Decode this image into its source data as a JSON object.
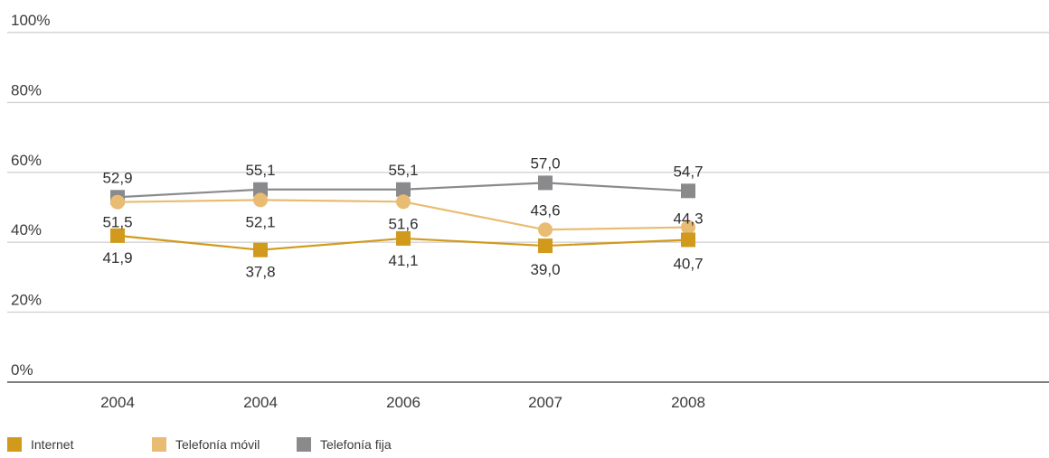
{
  "chart_data": {
    "type": "line",
    "categories": [
      "2004",
      "2004",
      "2006",
      "2007",
      "2008"
    ],
    "ylim": [
      0,
      100
    ],
    "yticks": [
      "0%",
      "20%",
      "40%",
      "60%",
      "80%",
      "100%"
    ],
    "ytick_values": [
      0,
      20,
      40,
      60,
      80,
      100
    ],
    "grid": true,
    "legend_position": "bottom-left",
    "series": [
      {
        "name": "Internet",
        "color": "#D29A1C",
        "marker": "square",
        "values": [
          41.9,
          37.8,
          41.1,
          39.0,
          40.7
        ],
        "labels": [
          "41,9",
          "37,8",
          "41,1",
          "39,0",
          "40,7"
        ]
      },
      {
        "name": "Telefonía móvil",
        "color": "#E8BC73",
        "marker": "circle",
        "values": [
          51.5,
          52.1,
          51.6,
          43.6,
          44.3
        ],
        "labels": [
          "51,5",
          "52,1",
          "51,6",
          "43,6",
          "44,3"
        ]
      },
      {
        "name": "Telefonía fija",
        "color": "#8A8A8C",
        "marker": "square",
        "values": [
          52.9,
          55.1,
          55.1,
          57.0,
          54.7
        ],
        "labels": [
          "52,9",
          "55,1",
          "55,1",
          "57,0",
          "54,7"
        ]
      }
    ]
  }
}
